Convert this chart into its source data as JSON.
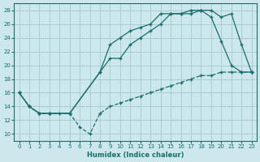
{
  "xlabel": "Humidex (Indice chaleur)",
  "bg_color": "#cce8ec",
  "grid_color": "#aacdd4",
  "line_color": "#1a6e6e",
  "xlim": [
    -0.5,
    23.5
  ],
  "ylim": [
    9,
    29
  ],
  "xticks": [
    0,
    1,
    2,
    3,
    4,
    5,
    6,
    7,
    8,
    9,
    10,
    11,
    12,
    13,
    14,
    15,
    16,
    17,
    18,
    19,
    20,
    21,
    22,
    23
  ],
  "yticks": [
    10,
    12,
    14,
    16,
    18,
    20,
    22,
    24,
    26,
    28
  ],
  "line1_x": [
    0,
    1,
    2,
    3,
    4,
    5,
    6,
    7,
    8,
    9,
    10,
    11,
    12,
    13,
    14,
    15,
    16,
    17,
    18,
    19,
    20,
    21,
    22,
    23
  ],
  "line1_y": [
    16,
    14,
    13,
    13,
    13,
    13,
    11,
    10,
    13,
    14,
    14.5,
    15,
    15.5,
    16,
    16.5,
    17,
    17.5,
    18,
    18.5,
    18.5,
    19,
    19,
    19,
    19
  ],
  "line2_x": [
    0,
    1,
    2,
    3,
    5,
    8,
    9,
    10,
    11,
    12,
    13,
    14,
    15,
    16,
    17,
    18,
    19,
    20,
    21,
    22,
    23
  ],
  "line2_y": [
    16,
    14,
    13,
    13,
    13,
    19,
    21,
    21,
    23,
    24,
    25,
    26,
    27.5,
    27.5,
    27.5,
    28,
    28,
    27,
    27.5,
    23,
    19
  ],
  "line3_x": [
    0,
    1,
    2,
    3,
    5,
    8,
    9,
    10,
    11,
    12,
    13,
    14,
    15,
    16,
    17,
    18,
    19,
    20,
    21,
    22,
    23
  ],
  "line3_y": [
    16,
    14,
    13,
    13,
    13,
    19,
    23,
    24,
    25,
    25.5,
    26,
    27.5,
    27.5,
    27.5,
    28,
    28,
    27,
    23.5,
    20,
    19,
    19
  ]
}
